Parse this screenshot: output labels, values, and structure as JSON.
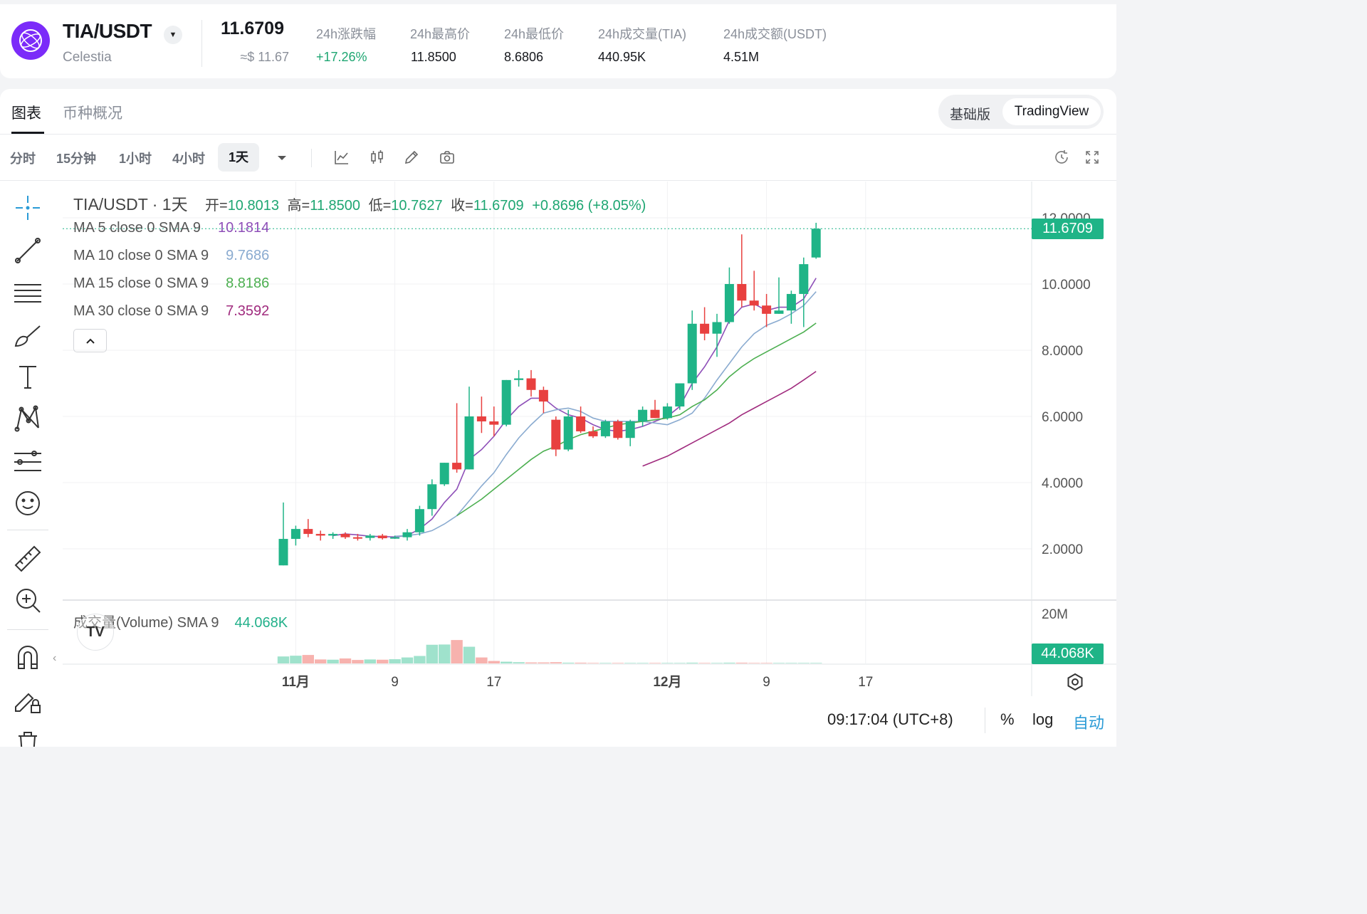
{
  "header": {
    "pair": "TIA/USDT",
    "name": "Celestia",
    "price": "11.6709",
    "price_usd": "≈$ 11.67",
    "stats": [
      {
        "label": "24h涨跌幅",
        "value": "+17.26%"
      },
      {
        "label": "24h最高价",
        "value": "11.8500"
      },
      {
        "label": "24h最低价",
        "value": "8.6806"
      },
      {
        "label": "24h成交量(TIA)",
        "value": "440.95K"
      },
      {
        "label": "24h成交额(USDT)",
        "value": "4.51M"
      }
    ]
  },
  "tabs": [
    "图表",
    "币种概况"
  ],
  "view_modes": [
    "基础版",
    "TradingView"
  ],
  "timeframes": [
    "分时",
    "15分钟",
    "1小时",
    "4小时",
    "1天"
  ],
  "legend": {
    "title": "TIA/USDT · 1天",
    "ohlc_labels": [
      "开=",
      "高=",
      "低=",
      "收="
    ],
    "ohlc_values": [
      "10.8013",
      "11.8500",
      "10.7627",
      "11.6709"
    ],
    "change": "+0.8696 (+8.05%)",
    "ma": [
      {
        "label": "MA 5 close 0 SMA 9",
        "value": "10.1814",
        "color": "#8e4fb8"
      },
      {
        "label": "MA 10 close 0 SMA 9",
        "value": "9.7686",
        "color": "#8aabd0"
      },
      {
        "label": "MA 15 close 0 SMA 9",
        "value": "8.8186",
        "color": "#4caf50"
      },
      {
        "label": "MA 30 close 0 SMA 9",
        "value": "7.3592",
        "color": "#a02b7e"
      }
    ],
    "volume_label": "成交量(Volume) SMA 9",
    "volume_value": "44.068K"
  },
  "y_axis": [
    "12.0000",
    "10.0000",
    "8.0000",
    "6.0000",
    "4.0000",
    "2.0000"
  ],
  "vol_axis": "20M",
  "last_price_tag": "11.6709",
  "last_vol_tag": "44.068K",
  "x_axis": [
    "11月",
    "9",
    "17",
    "12月",
    "9",
    "17"
  ],
  "footer": {
    "time": "09:17:04 (UTC+8)",
    "pct": "%",
    "log": "log",
    "auto": "自动"
  },
  "colors": {
    "up": "#1fb487",
    "down": "#e8403f",
    "accent": "#2a9bd6"
  },
  "chart_data": {
    "type": "candlestick",
    "ylim": [
      0,
      12.4
    ],
    "candles": [
      {
        "o": 1.5,
        "h": 3.4,
        "l": 1.5,
        "c": 2.3
      },
      {
        "o": 2.3,
        "h": 2.7,
        "l": 2.1,
        "c": 2.6
      },
      {
        "o": 2.6,
        "h": 2.9,
        "l": 2.35,
        "c": 2.45
      },
      {
        "o": 2.45,
        "h": 2.55,
        "l": 2.25,
        "c": 2.4
      },
      {
        "o": 2.4,
        "h": 2.5,
        "l": 2.3,
        "c": 2.45
      },
      {
        "o": 2.45,
        "h": 2.5,
        "l": 2.3,
        "c": 2.35
      },
      {
        "o": 2.35,
        "h": 2.45,
        "l": 2.25,
        "c": 2.33
      },
      {
        "o": 2.33,
        "h": 2.45,
        "l": 2.25,
        "c": 2.4
      },
      {
        "o": 2.4,
        "h": 2.45,
        "l": 2.28,
        "c": 2.32
      },
      {
        "o": 2.32,
        "h": 2.4,
        "l": 2.3,
        "c": 2.35
      },
      {
        "o": 2.35,
        "h": 2.6,
        "l": 2.25,
        "c": 2.5
      },
      {
        "o": 2.5,
        "h": 3.3,
        "l": 2.4,
        "c": 3.2
      },
      {
        "o": 3.2,
        "h": 4.1,
        "l": 3.0,
        "c": 3.95
      },
      {
        "o": 3.95,
        "h": 4.6,
        "l": 3.9,
        "c": 4.6
      },
      {
        "o": 4.6,
        "h": 6.4,
        "l": 4.3,
        "c": 4.4
      },
      {
        "o": 4.4,
        "h": 6.9,
        "l": 4.4,
        "c": 6.0
      },
      {
        "o": 6.0,
        "h": 6.6,
        "l": 5.5,
        "c": 5.85
      },
      {
        "o": 5.85,
        "h": 6.3,
        "l": 5.4,
        "c": 5.75
      },
      {
        "o": 5.75,
        "h": 7.1,
        "l": 5.7,
        "c": 7.1
      },
      {
        "o": 7.1,
        "h": 7.4,
        "l": 6.9,
        "c": 7.15
      },
      {
        "o": 7.15,
        "h": 7.4,
        "l": 6.6,
        "c": 6.8
      },
      {
        "o": 6.8,
        "h": 6.9,
        "l": 6.1,
        "c": 6.45
      },
      {
        "o": 5.9,
        "h": 6.0,
        "l": 4.8,
        "c": 5.0
      },
      {
        "o": 5.0,
        "h": 6.2,
        "l": 4.95,
        "c": 6.0
      },
      {
        "o": 6.0,
        "h": 6.3,
        "l": 5.5,
        "c": 5.55
      },
      {
        "o": 5.55,
        "h": 5.7,
        "l": 5.35,
        "c": 5.4
      },
      {
        "o": 5.4,
        "h": 5.9,
        "l": 5.35,
        "c": 5.85
      },
      {
        "o": 5.85,
        "h": 5.9,
        "l": 5.3,
        "c": 5.35
      },
      {
        "o": 5.35,
        "h": 5.9,
        "l": 5.1,
        "c": 5.85
      },
      {
        "o": 5.85,
        "h": 6.3,
        "l": 5.7,
        "c": 6.2
      },
      {
        "o": 6.2,
        "h": 6.5,
        "l": 5.95,
        "c": 5.95
      },
      {
        "o": 5.95,
        "h": 6.4,
        "l": 5.9,
        "c": 6.3
      },
      {
        "o": 6.3,
        "h": 7.0,
        "l": 6.2,
        "c": 7.0
      },
      {
        "o": 7.0,
        "h": 9.2,
        "l": 6.8,
        "c": 8.8
      },
      {
        "o": 8.8,
        "h": 9.3,
        "l": 8.3,
        "c": 8.5
      },
      {
        "o": 8.5,
        "h": 9.1,
        "l": 7.8,
        "c": 8.85
      },
      {
        "o": 8.85,
        "h": 10.5,
        "l": 8.8,
        "c": 10.0
      },
      {
        "o": 10.0,
        "h": 11.5,
        "l": 9.3,
        "c": 9.5
      },
      {
        "o": 9.5,
        "h": 10.4,
        "l": 9.2,
        "c": 9.35
      },
      {
        "o": 9.35,
        "h": 9.7,
        "l": 8.7,
        "c": 9.1
      },
      {
        "o": 9.1,
        "h": 10.2,
        "l": 9.1,
        "c": 9.2
      },
      {
        "o": 9.2,
        "h": 9.8,
        "l": 8.8,
        "c": 9.7
      },
      {
        "o": 9.7,
        "h": 10.8,
        "l": 8.7,
        "c": 10.6
      },
      {
        "o": 10.8013,
        "h": 11.85,
        "l": 10.7627,
        "c": 11.6709
      }
    ],
    "ma5": [
      null,
      null,
      null,
      null,
      2.4,
      2.45,
      2.42,
      2.38,
      2.37,
      2.36,
      2.4,
      2.6,
      2.9,
      3.4,
      3.8,
      4.7,
      5.0,
      5.4,
      5.9,
      6.3,
      6.55,
      6.55,
      6.25,
      6.05,
      5.95,
      5.75,
      5.6,
      5.55,
      5.6,
      5.7,
      5.85,
      6.0,
      6.3,
      7.0,
      7.5,
      8.1,
      8.9,
      9.3,
      9.4,
      9.2,
      9.3,
      9.3,
      9.55,
      10.18
    ],
    "ma10": [
      null,
      null,
      null,
      null,
      null,
      null,
      null,
      null,
      null,
      2.38,
      2.4,
      2.45,
      2.55,
      2.75,
      3.0,
      3.45,
      3.9,
      4.3,
      4.85,
      5.35,
      5.75,
      6.1,
      6.2,
      6.25,
      6.15,
      5.95,
      5.85,
      5.85,
      5.85,
      5.85,
      5.8,
      5.75,
      5.9,
      6.1,
      6.55,
      7.1,
      7.6,
      8.1,
      8.5,
      8.75,
      8.9,
      9.1,
      9.35,
      9.77
    ],
    "ma15": [
      null,
      null,
      null,
      null,
      null,
      null,
      null,
      null,
      null,
      null,
      null,
      null,
      null,
      null,
      3.0,
      3.25,
      3.5,
      3.8,
      4.1,
      4.4,
      4.7,
      4.95,
      5.1,
      5.3,
      5.45,
      5.55,
      5.65,
      5.75,
      5.8,
      5.85,
      5.9,
      5.95,
      6.05,
      6.3,
      6.5,
      6.8,
      7.2,
      7.5,
      7.75,
      7.95,
      8.15,
      8.35,
      8.55,
      8.82
    ],
    "ma30": [
      null,
      null,
      null,
      null,
      null,
      null,
      null,
      null,
      null,
      null,
      null,
      null,
      null,
      null,
      null,
      null,
      null,
      null,
      null,
      null,
      null,
      null,
      null,
      null,
      null,
      null,
      null,
      null,
      null,
      4.5,
      4.65,
      4.8,
      5.0,
      5.2,
      5.4,
      5.6,
      5.8,
      6.05,
      6.25,
      6.45,
      6.65,
      6.85,
      7.1,
      7.36
    ],
    "volume": [
      2.8,
      3.1,
      3.4,
      1.6,
      1.5,
      2.0,
      1.4,
      1.6,
      1.5,
      1.7,
      2.4,
      3.0,
      7.5,
      7.6,
      9.4,
      6.7,
      2.4,
      1.0,
      0.7,
      0.5,
      0.4,
      0.4,
      0.5,
      0.3,
      0.3,
      0.2,
      0.2,
      0.2,
      0.2,
      0.2,
      0.2,
      0.2,
      0.2,
      0.3,
      0.2,
      0.2,
      0.3,
      0.3,
      0.2,
      0.2,
      0.2,
      0.2,
      0.2,
      0.2
    ],
    "vol_ylim": [
      0,
      20
    ]
  }
}
